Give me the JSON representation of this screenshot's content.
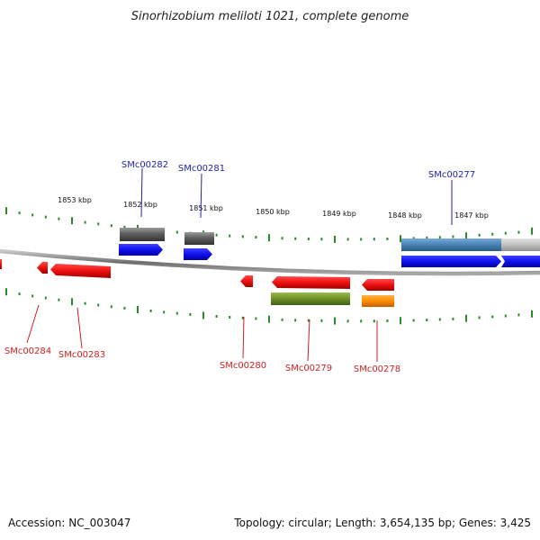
{
  "title": "Sinorhizobium meliloti 1021, complete genome",
  "footer": {
    "accession": "Accession: NC_003047",
    "stats": "Topology: circular; Length: 3,654,135 bp; Genes: 3,425"
  },
  "ticks": [
    "1853 kbp",
    "1852 kbp",
    "1851 kbp",
    "1850 kbp",
    "1849 kbp",
    "1848 kbp",
    "1847 kbp"
  ],
  "genes_forward": [
    {
      "label": "SMc00282",
      "color": "#1515ee"
    },
    {
      "label": "SMc00281",
      "color": "#1515ee"
    },
    {
      "label": "SMc00277",
      "color": "#1515ee"
    }
  ],
  "genes_reverse": [
    {
      "label": "SMc00284",
      "color": "#ee1515"
    },
    {
      "label": "SMc00283",
      "color": "#ee1515"
    },
    {
      "label": "SMc00280",
      "color": "#ee1515"
    },
    {
      "label": "SMc00279",
      "color": "#ee1515"
    },
    {
      "label": "SMc00278",
      "color": "#ee1515"
    }
  ],
  "colors": {
    "backbone": "#888888",
    "tick": "#2a8a2a",
    "cds_forward": "#1515ee",
    "cds_reverse": "#ee1515",
    "gene_gray": "#666666",
    "gene_blue_light": "#4682b4",
    "gene_olive": "#6b8e23",
    "gene_orange": "#ff8c00"
  }
}
